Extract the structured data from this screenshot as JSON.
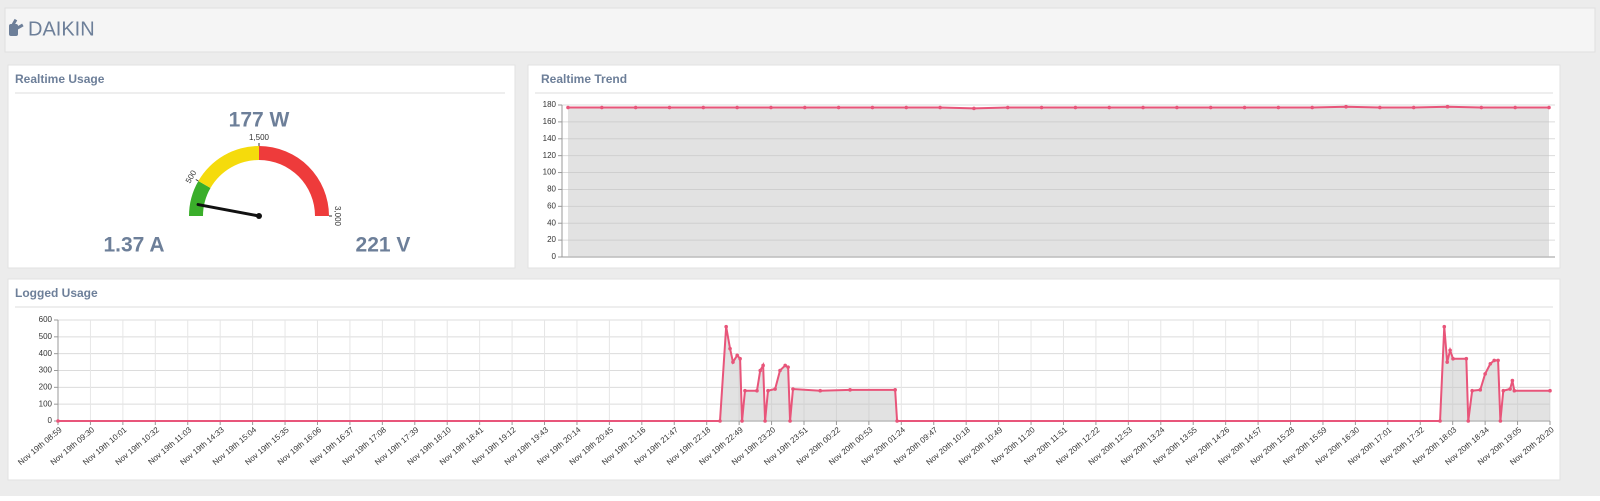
{
  "header": {
    "title": "DAIKIN"
  },
  "chart_data": [
    {
      "type": "gauge",
      "title": "Realtime Usage",
      "values": [
        177
      ],
      "value_labels": [
        "177 W"
      ],
      "readings": [
        "1.37 A",
        "221 V"
      ],
      "ylim": [
        0,
        3000
      ],
      "yticks": [
        500,
        {
          "value": 1500,
          "label": "1,500"
        },
        {
          "value": 3000,
          "label": "3,000"
        }
      ],
      "bands": [
        {
          "from": 0,
          "to": 500,
          "color": "#3aae2a"
        },
        {
          "from": 500,
          "to": 1500,
          "color": "#f5db0c"
        },
        {
          "from": 1500,
          "to": 3000,
          "color": "#ee3b3b"
        }
      ],
      "color": "#111111"
    },
    {
      "type": "area",
      "title": "Realtime Trend",
      "categories": [
        null,
        null,
        null,
        null,
        null,
        null,
        null,
        null,
        null,
        null,
        null,
        null,
        null,
        null,
        null,
        null,
        null,
        null,
        null,
        null,
        null,
        null,
        null,
        null,
        null,
        null,
        null,
        null,
        null,
        null
      ],
      "values": [
        177,
        177,
        177,
        177,
        177,
        177,
        177,
        177,
        177,
        177,
        177,
        177,
        176,
        177,
        177,
        177,
        177,
        177,
        177,
        177,
        177,
        177,
        177,
        178,
        177,
        177,
        178,
        177,
        177,
        177
      ],
      "color": "#e8557a",
      "ylim": [
        0,
        180
      ],
      "yticks": [
        0,
        20,
        40,
        60,
        80,
        100,
        120,
        140,
        160,
        180
      ],
      "grid": true
    },
    {
      "type": "area",
      "title": "Logged Usage",
      "xlim": [
        0,
        46
      ],
      "xticks": [
        {
          "value": 0,
          "label": "Nov 19th 08:59"
        },
        {
          "value": 1,
          "label": "Nov 19th 09:30"
        },
        {
          "value": 2,
          "label": "Nov 19th 10:01"
        },
        {
          "value": 3,
          "label": "Nov 19th 10:32"
        },
        {
          "value": 4,
          "label": "Nov 19th 11:03"
        },
        {
          "value": 5,
          "label": "Nov 19th 14:33"
        },
        {
          "value": 6,
          "label": "Nov 19th 15:04"
        },
        {
          "value": 7,
          "label": "Nov 19th 15:35"
        },
        {
          "value": 8,
          "label": "Nov 19th 16:06"
        },
        {
          "value": 9,
          "label": "Nov 19th 16:37"
        },
        {
          "value": 10,
          "label": "Nov 19th 17:08"
        },
        {
          "value": 11,
          "label": "Nov 19th 17:39"
        },
        {
          "value": 12,
          "label": "Nov 19th 18:10"
        },
        {
          "value": 13,
          "label": "Nov 19th 18:41"
        },
        {
          "value": 14,
          "label": "Nov 19th 19:12"
        },
        {
          "value": 15,
          "label": "Nov 19th 19:43"
        },
        {
          "value": 16,
          "label": "Nov 19th 20:14"
        },
        {
          "value": 17,
          "label": "Nov 19th 20:45"
        },
        {
          "value": 18,
          "label": "Nov 19th 21:16"
        },
        {
          "value": 19,
          "label": "Nov 19th 21:47"
        },
        {
          "value": 20,
          "label": "Nov 19th 22:18"
        },
        {
          "value": 21,
          "label": "Nov 19th 22:49"
        },
        {
          "value": 22,
          "label": "Nov 19th 23:20"
        },
        {
          "value": 23,
          "label": "Nov 19th 23:51"
        },
        {
          "value": 24,
          "label": "Nov 20th 00:22"
        },
        {
          "value": 25,
          "label": "Nov 20th 00:53"
        },
        {
          "value": 26,
          "label": "Nov 20th 01:24"
        },
        {
          "value": 27,
          "label": "Nov 20th 09:47"
        },
        {
          "value": 28,
          "label": "Nov 20th 10:18"
        },
        {
          "value": 29,
          "label": "Nov 20th 10:49"
        },
        {
          "value": 30,
          "label": "Nov 20th 11:20"
        },
        {
          "value": 31,
          "label": "Nov 20th 11:51"
        },
        {
          "value": 32,
          "label": "Nov 20th 12:22"
        },
        {
          "value": 33,
          "label": "Nov 20th 12:53"
        },
        {
          "value": 34,
          "label": "Nov 20th 13:24"
        },
        {
          "value": 35,
          "label": "Nov 20th 13:55"
        },
        {
          "value": 36,
          "label": "Nov 20th 14:26"
        },
        {
          "value": 37,
          "label": "Nov 20th 14:57"
        },
        {
          "value": 38,
          "label": "Nov 20th 15:28"
        },
        {
          "value": 39,
          "label": "Nov 20th 15:59"
        },
        {
          "value": 40,
          "label": "Nov 20th 16:30"
        },
        {
          "value": 41,
          "label": "Nov 20th 17:01"
        },
        {
          "value": 42,
          "label": "Nov 20th 17:32"
        },
        {
          "value": 43,
          "label": "Nov 20th 18:03"
        },
        {
          "value": 44,
          "label": "Nov 20th 18:34"
        },
        {
          "value": 45,
          "label": "Nov 20th 19:05"
        },
        {
          "value": 46,
          "label": "Nov 20th 20:20"
        }
      ],
      "x": [
        0,
        20.41,
        20.6,
        20.72,
        20.81,
        20.94,
        21.03,
        21.09,
        21.18,
        21.55,
        21.65,
        21.74,
        21.8,
        21.89,
        22.11,
        22.26,
        22.42,
        22.51,
        22.57,
        22.66,
        23.5,
        24.42,
        25.81,
        25.87,
        42.61,
        42.74,
        42.83,
        42.92,
        43.01,
        43.42,
        43.48,
        43.6,
        43.85,
        44,
        44.16,
        44.28,
        44.4,
        44.47,
        44.56,
        44.77,
        44.84,
        44.9,
        46
      ],
      "values": [
        0,
        0,
        560,
        430,
        350,
        390,
        370,
        0,
        180,
        180,
        300,
        330,
        0,
        180,
        190,
        300,
        330,
        320,
        0,
        190,
        180,
        185,
        185,
        0,
        0,
        560,
        350,
        420,
        370,
        370,
        0,
        180,
        185,
        280,
        340,
        360,
        360,
        0,
        180,
        190,
        240,
        180,
        180
      ],
      "color": "#e8557a",
      "ylim": [
        0,
        600
      ],
      "yticks": [
        0,
        100,
        200,
        300,
        400,
        500,
        600
      ],
      "grid": true
    }
  ]
}
